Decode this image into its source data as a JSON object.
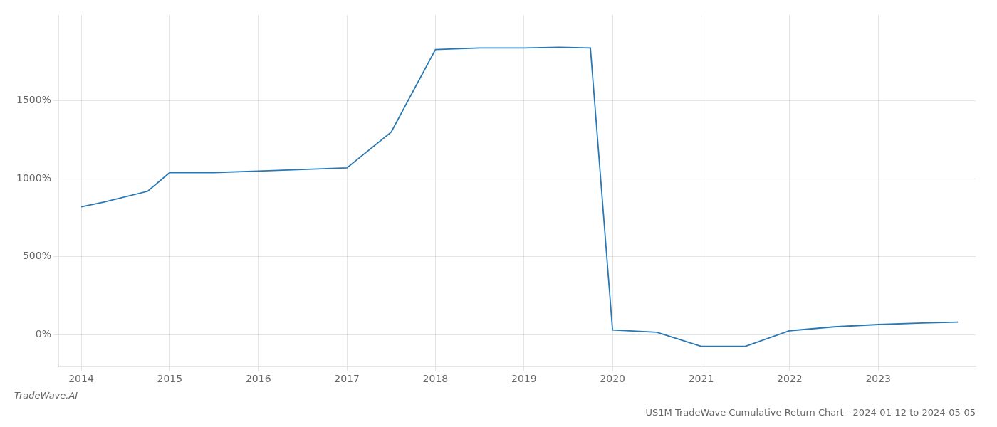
{
  "chart_data": {
    "type": "line",
    "title": "US1M TradeWave Cumulative Return Chart - 2024-01-12 to 2024-05-05",
    "annotations": [
      "TradeWave.AI"
    ],
    "x": [
      2014.0,
      2014.25,
      2014.75,
      2015.0,
      2015.5,
      2016.0,
      2016.5,
      2017.0,
      2017.5,
      2018.0,
      2018.5,
      2019.0,
      2019.4,
      2019.75,
      2020.0,
      2020.5,
      2021.0,
      2021.5,
      2022.0,
      2022.5,
      2023.0,
      2023.5,
      2023.9
    ],
    "values": [
      820,
      850,
      920,
      1040,
      1040,
      1050,
      1060,
      1070,
      1300,
      1830,
      1840,
      1840,
      1845,
      1840,
      30,
      15,
      -75,
      -75,
      25,
      50,
      65,
      75,
      80
    ],
    "color": "#2878b5",
    "xlim": [
      2013.75,
      2024.1
    ],
    "xticks": [
      2014,
      2015,
      2016,
      2017,
      2018,
      2019,
      2020,
      2021,
      2022,
      2023
    ],
    "ylim": [
      -200,
      2050
    ],
    "yticks": [
      {
        "value": 0,
        "label": "0%"
      },
      {
        "value": 500,
        "label": "500%"
      },
      {
        "value": 1000,
        "label": "1000%"
      },
      {
        "value": 1500,
        "label": "1500%"
      }
    ],
    "grid": true
  }
}
